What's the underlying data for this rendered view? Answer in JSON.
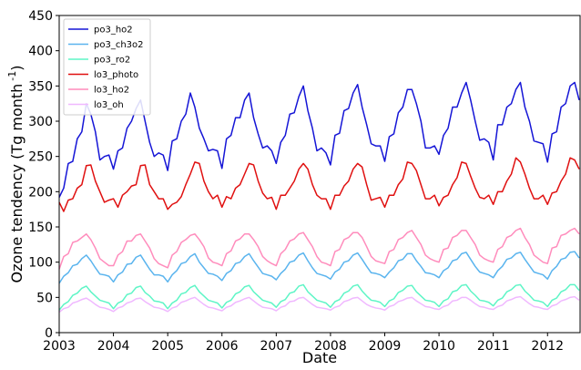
{
  "chart_data": {
    "type": "line",
    "xlabel": "Date",
    "ylabel": "Ozone tendency (Tg month",
    "ylabel_sup": "-1",
    "ylabel_end": ")",
    "xlim": [
      2003,
      2012.6
    ],
    "xticks": [
      2003,
      2004,
      2005,
      2006,
      2007,
      2008,
      2009,
      2010,
      2011,
      2012
    ],
    "ylim": [
      0,
      450
    ],
    "yticks": [
      0,
      50,
      100,
      150,
      200,
      250,
      300,
      350,
      400,
      450
    ],
    "grid": false,
    "legend": "upper left",
    "x": [
      2003,
      2003.083,
      2003.167,
      2003.25,
      2003.333,
      2003.417,
      2003.5,
      2003.583,
      2003.667,
      2003.75,
      2003.833,
      2003.917,
      2004,
      2004.083,
      2004.167,
      2004.25,
      2004.333,
      2004.417,
      2004.5,
      2004.583,
      2004.667,
      2004.75,
      2004.833,
      2004.917,
      2005,
      2005.083,
      2005.167,
      2005.25,
      2005.333,
      2005.417,
      2005.5,
      2005.583,
      2005.667,
      2005.75,
      2005.833,
      2005.917,
      2006,
      2006.083,
      2006.167,
      2006.25,
      2006.333,
      2006.417,
      2006.5,
      2006.583,
      2006.667,
      2006.75,
      2006.833,
      2006.917,
      2007,
      2007.083,
      2007.167,
      2007.25,
      2007.333,
      2007.417,
      2007.5,
      2007.583,
      2007.667,
      2007.75,
      2007.833,
      2007.917,
      2008,
      2008.083,
      2008.167,
      2008.25,
      2008.333,
      2008.417,
      2008.5,
      2008.583,
      2008.667,
      2008.75,
      2008.833,
      2008.917,
      2009,
      2009.083,
      2009.167,
      2009.25,
      2009.333,
      2009.417,
      2009.5,
      2009.583,
      2009.667,
      2009.75,
      2009.833,
      2009.917,
      2010,
      2010.083,
      2010.167,
      2010.25,
      2010.333,
      2010.417,
      2010.5,
      2010.583,
      2010.667,
      2010.75,
      2010.833,
      2010.917,
      2011,
      2011.083,
      2011.167,
      2011.25,
      2011.333,
      2011.417,
      2011.5,
      2011.583,
      2011.667,
      2011.75,
      2011.833,
      2011.917,
      2012,
      2012.083,
      2012.167,
      2012.25,
      2012.333,
      2012.417,
      2012.5,
      2012.583
    ],
    "series": [
      {
        "name": "po3_ho2",
        "color": "#1515d6",
        "values": [
          192,
          205,
          240,
          243,
          275,
          285,
          325,
          310,
          285,
          245,
          250,
          252,
          232,
          258,
          262,
          290,
          300,
          318,
          330,
          300,
          270,
          250,
          255,
          252,
          230,
          272,
          275,
          300,
          310,
          340,
          320,
          290,
          275,
          258,
          260,
          258,
          233,
          275,
          280,
          305,
          305,
          330,
          340,
          305,
          282,
          262,
          265,
          258,
          240,
          270,
          280,
          310,
          312,
          335,
          350,
          315,
          290,
          258,
          262,
          255,
          238,
          280,
          283,
          315,
          318,
          340,
          352,
          320,
          295,
          268,
          265,
          265,
          243,
          278,
          282,
          312,
          320,
          345,
          345,
          325,
          300,
          262,
          262,
          265,
          253,
          280,
          290,
          320,
          320,
          340,
          355,
          330,
          300,
          273,
          275,
          270,
          245,
          295,
          295,
          320,
          325,
          345,
          355,
          320,
          300,
          272,
          270,
          268,
          242,
          282,
          285,
          320,
          325,
          350,
          355,
          330
        ]
      },
      {
        "name": "po3_ch3o2",
        "color": "#5ab4ee",
        "values": [
          70,
          80,
          85,
          95,
          97,
          105,
          110,
          102,
          92,
          83,
          82,
          80,
          72,
          82,
          86,
          97,
          98,
          107,
          110,
          100,
          90,
          82,
          82,
          80,
          72,
          82,
          88,
          98,
          100,
          108,
          112,
          100,
          92,
          84,
          83,
          80,
          74,
          84,
          88,
          98,
          100,
          108,
          112,
          102,
          93,
          84,
          82,
          80,
          75,
          84,
          90,
          100,
          102,
          110,
          113,
          102,
          92,
          84,
          82,
          80,
          76,
          86,
          90,
          100,
          102,
          110,
          113,
          104,
          94,
          85,
          84,
          82,
          78,
          86,
          92,
          102,
          104,
          112,
          112,
          102,
          94,
          85,
          84,
          82,
          78,
          88,
          92,
          102,
          104,
          112,
          114,
          104,
          94,
          86,
          84,
          82,
          78,
          88,
          94,
          104,
          106,
          112,
          114,
          104,
          95,
          86,
          84,
          82,
          76,
          88,
          94,
          104,
          106,
          114,
          115,
          106
        ]
      },
      {
        "name": "po3_ro2",
        "color": "#5ef5c6",
        "values": [
          32,
          40,
          44,
          53,
          56,
          63,
          66,
          58,
          52,
          46,
          44,
          42,
          34,
          42,
          45,
          54,
          56,
          64,
          66,
          57,
          52,
          45,
          44,
          42,
          34,
          42,
          46,
          55,
          57,
          64,
          67,
          58,
          52,
          46,
          44,
          42,
          35,
          43,
          46,
          55,
          58,
          65,
          67,
          58,
          52,
          46,
          44,
          42,
          36,
          44,
          47,
          56,
          58,
          66,
          68,
          58,
          52,
          46,
          44,
          42,
          36,
          44,
          47,
          56,
          59,
          66,
          68,
          59,
          52,
          46,
          45,
          43,
          37,
          45,
          48,
          57,
          60,
          66,
          67,
          58,
          52,
          46,
          45,
          43,
          37,
          45,
          48,
          58,
          60,
          67,
          68,
          59,
          53,
          46,
          45,
          43,
          38,
          46,
          49,
          58,
          61,
          67,
          68,
          59,
          53,
          46,
          45,
          43,
          37,
          46,
          49,
          58,
          61,
          68,
          68,
          60
        ]
      },
      {
        "name": "lo3_photo",
        "color": "#e01010",
        "values": [
          185,
          172,
          188,
          190,
          205,
          210,
          237,
          238,
          215,
          200,
          185,
          188,
          190,
          178,
          195,
          200,
          208,
          210,
          237,
          238,
          210,
          200,
          190,
          190,
          175,
          182,
          185,
          193,
          210,
          225,
          242,
          240,
          215,
          200,
          190,
          195,
          178,
          193,
          190,
          205,
          210,
          225,
          240,
          238,
          215,
          198,
          190,
          192,
          175,
          195,
          195,
          205,
          215,
          232,
          240,
          232,
          210,
          195,
          190,
          190,
          175,
          195,
          195,
          208,
          215,
          232,
          240,
          235,
          210,
          188,
          190,
          192,
          178,
          195,
          195,
          210,
          218,
          242,
          240,
          230,
          210,
          190,
          190,
          195,
          180,
          192,
          195,
          210,
          220,
          242,
          240,
          222,
          205,
          192,
          190,
          195,
          182,
          200,
          200,
          215,
          225,
          248,
          242,
          225,
          205,
          190,
          190,
          195,
          182,
          198,
          200,
          215,
          225,
          248,
          245,
          232
        ]
      },
      {
        "name": "lo3_ho2",
        "color": "#ff8cbc",
        "values": [
          90,
          108,
          112,
          128,
          130,
          135,
          140,
          132,
          120,
          105,
          100,
          95,
          95,
          110,
          115,
          130,
          130,
          138,
          140,
          130,
          120,
          105,
          98,
          95,
          92,
          110,
          115,
          128,
          132,
          138,
          140,
          132,
          122,
          106,
          100,
          98,
          95,
          112,
          116,
          130,
          133,
          140,
          140,
          132,
          122,
          108,
          102,
          98,
          95,
          112,
          118,
          130,
          133,
          140,
          142,
          132,
          122,
          108,
          100,
          98,
          95,
          115,
          118,
          132,
          135,
          142,
          142,
          135,
          122,
          108,
          102,
          100,
          98,
          115,
          118,
          132,
          135,
          142,
          145,
          135,
          125,
          110,
          105,
          102,
          100,
          118,
          120,
          135,
          138,
          145,
          145,
          135,
          125,
          110,
          105,
          102,
          100,
          118,
          122,
          135,
          138,
          145,
          148,
          135,
          125,
          110,
          105,
          100,
          98,
          120,
          122,
          138,
          140,
          145,
          148,
          140
        ]
      },
      {
        "name": "lo3_oh",
        "color": "#f0b8ff",
        "values": [
          29,
          34,
          36,
          42,
          44,
          47,
          49,
          45,
          40,
          36,
          35,
          33,
          30,
          35,
          37,
          42,
          44,
          48,
          49,
          44,
          40,
          36,
          35,
          33,
          30,
          35,
          37,
          43,
          45,
          48,
          50,
          45,
          40,
          36,
          35,
          33,
          31,
          36,
          38,
          43,
          45,
          48,
          50,
          45,
          40,
          36,
          35,
          34,
          31,
          36,
          38,
          44,
          45,
          49,
          50,
          45,
          40,
          36,
          35,
          34,
          32,
          36,
          38,
          44,
          46,
          49,
          50,
          45,
          40,
          37,
          35,
          34,
          32,
          37,
          39,
          44,
          46,
          49,
          50,
          45,
          41,
          37,
          36,
          34,
          33,
          37,
          39,
          45,
          46,
          50,
          50,
          46,
          41,
          37,
          36,
          34,
          33,
          37,
          39,
          45,
          47,
          50,
          51,
          46,
          41,
          37,
          36,
          34,
          33,
          38,
          40,
          45,
          47,
          50,
          51,
          46
        ]
      }
    ]
  }
}
